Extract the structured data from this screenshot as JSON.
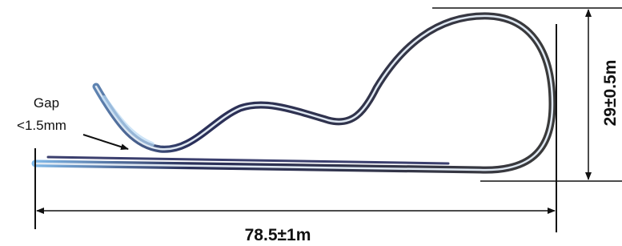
{
  "annotations": {
    "gap_label": "Gap",
    "gap_value": "<1.5mm",
    "length": "78.5±1m",
    "height": "29±0.5m"
  }
}
